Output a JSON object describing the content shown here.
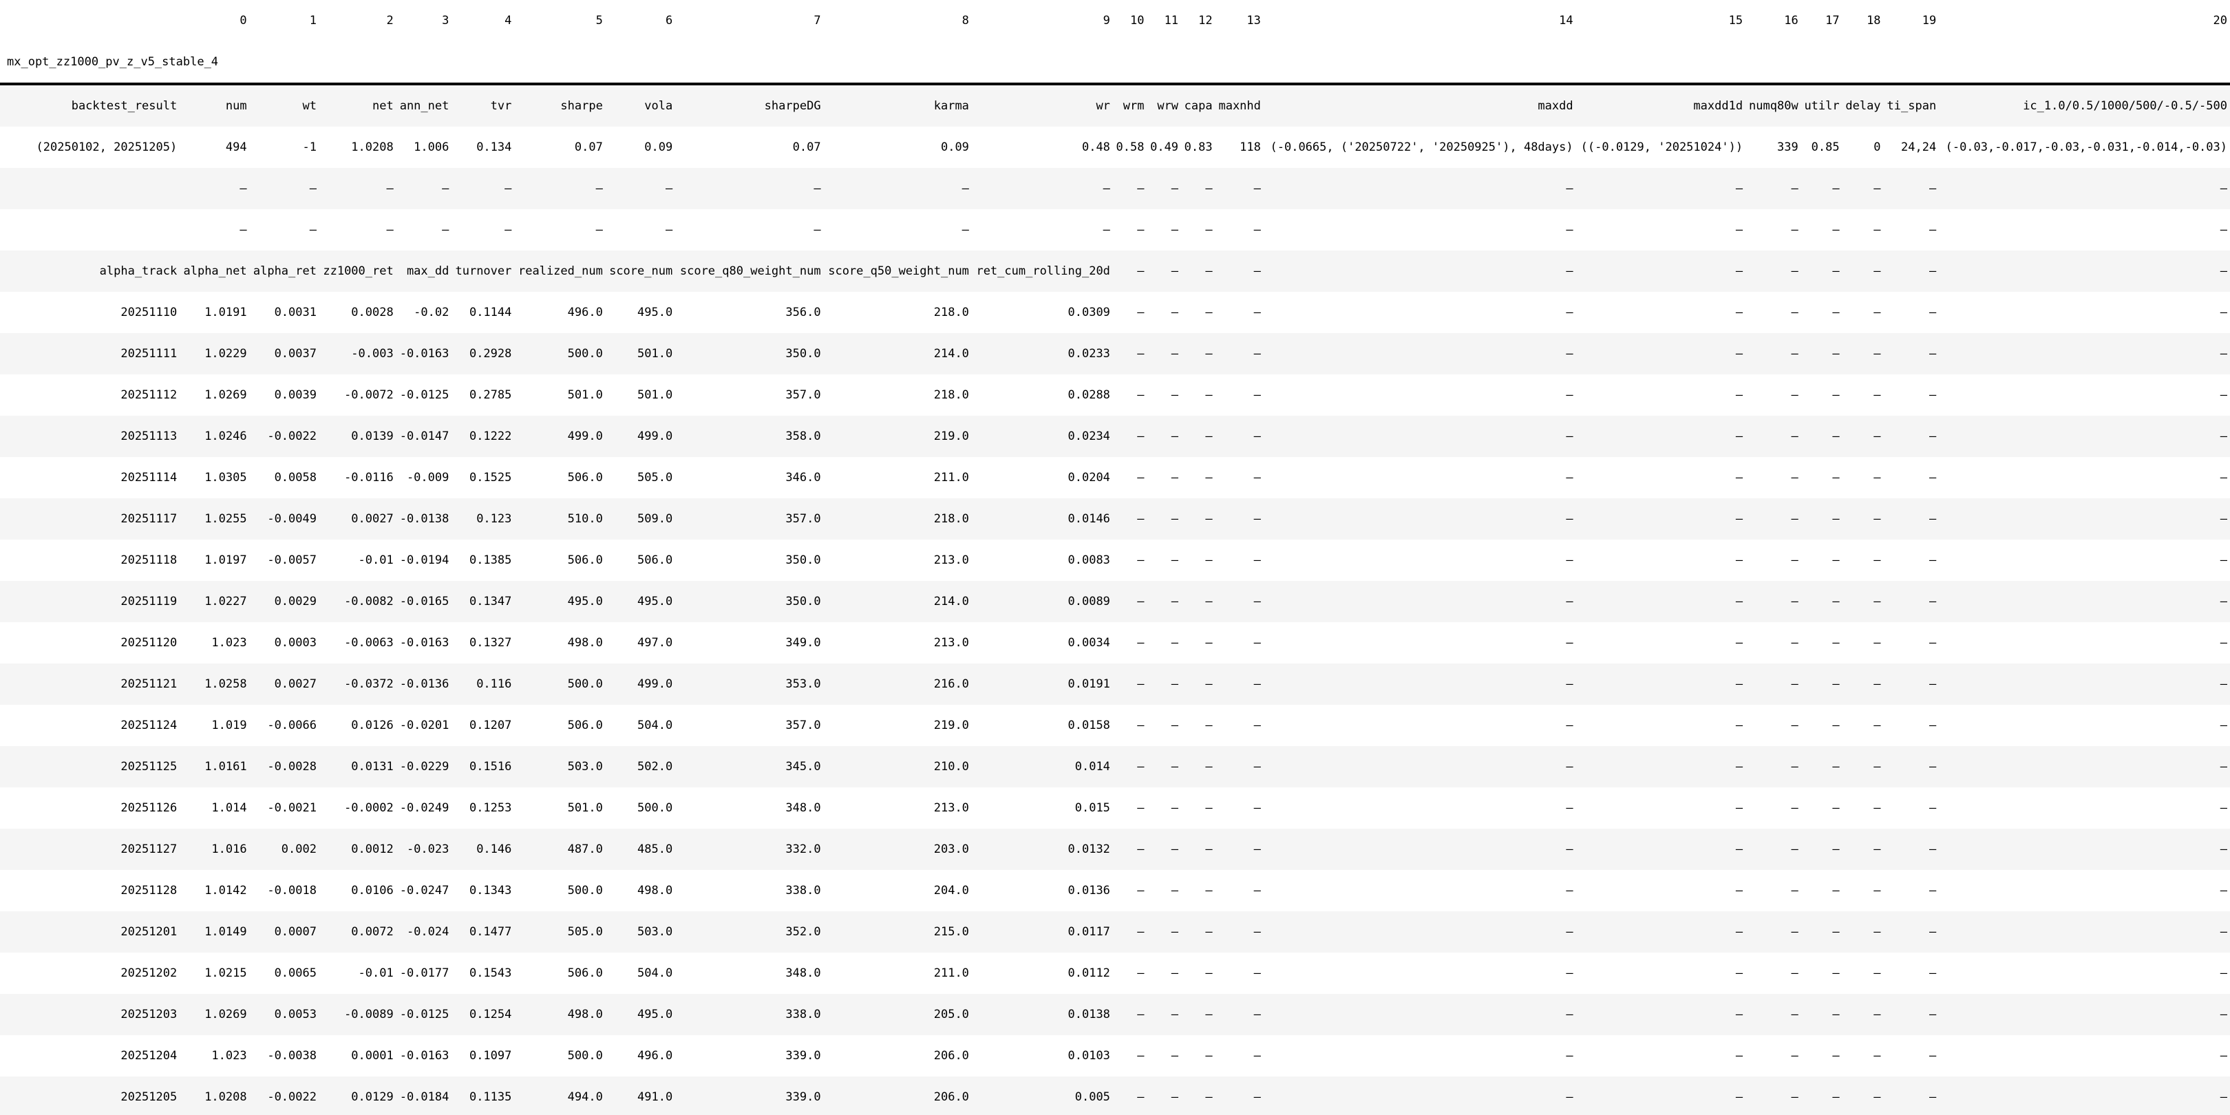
{
  "colors": {
    "background": "#ffffff",
    "stripe": "#f5f5f5",
    "rule": "#000000",
    "text": "#000000"
  },
  "table": {
    "title": "mx_opt_zz1000_pv_z_v5_stable_4",
    "column_ruler": [
      "",
      "0",
      "1",
      "2",
      "3",
      "4",
      "5",
      "6",
      "7",
      "8",
      "9",
      "10",
      "11",
      "12",
      "13",
      "14",
      "15",
      "16",
      "17",
      "18",
      "19",
      "20"
    ],
    "header": [
      "backtest_result",
      "num",
      "wt",
      "net",
      "ann_net",
      "tvr",
      "sharpe",
      "vola",
      "sharpeDG",
      "karma",
      "wr",
      "wrm",
      "wrw",
      "capa",
      "maxnhd",
      "maxdd",
      "maxdd1d",
      "numq80w",
      "utilr",
      "delay",
      "ti_span",
      "ic_1.0/0.5/1000/500/-0.5/-500"
    ],
    "rows": [
      [
        "(20250102, 20251205)",
        "494",
        "-1",
        "1.0208",
        "1.006",
        "0.134",
        "0.07",
        "0.09",
        "0.07",
        "0.09",
        "0.48",
        "0.58",
        "0.49",
        "0.83",
        "118",
        "(-0.0665, ('20250722', '20250925'), 48days)",
        "((-0.0129, '20251024'))",
        "339",
        "0.85",
        "0",
        "24,24",
        "(-0.03,-0.017,-0.03,-0.031,-0.014,-0.03)"
      ],
      [
        "",
        "—",
        "—",
        "—",
        "—",
        "—",
        "—",
        "—",
        "—",
        "—",
        "—",
        "—",
        "—",
        "—",
        "—",
        "—",
        "—",
        "—",
        "—",
        "—",
        "—",
        "—"
      ],
      [
        "",
        "—",
        "—",
        "—",
        "—",
        "—",
        "—",
        "—",
        "—",
        "—",
        "—",
        "—",
        "—",
        "—",
        "—",
        "—",
        "—",
        "—",
        "—",
        "—",
        "—",
        "—"
      ],
      [
        "alpha_track",
        "alpha_net",
        "alpha_ret",
        "zz1000_ret",
        "max_dd",
        "turnover",
        "realized_num",
        "score_num",
        "score_q80_weight_num",
        "score_q50_weight_num",
        "ret_cum_rolling_20d",
        "—",
        "—",
        "—",
        "—",
        "—",
        "—",
        "—",
        "—",
        "—",
        "—",
        "—"
      ],
      [
        "20251110",
        "1.0191",
        "0.0031",
        "0.0028",
        "-0.02",
        "0.1144",
        "496.0",
        "495.0",
        "356.0",
        "218.0",
        "0.0309",
        "—",
        "—",
        "—",
        "—",
        "—",
        "—",
        "—",
        "—",
        "—",
        "—",
        "—"
      ],
      [
        "20251111",
        "1.0229",
        "0.0037",
        "-0.003",
        "-0.0163",
        "0.2928",
        "500.0",
        "501.0",
        "350.0",
        "214.0",
        "0.0233",
        "—",
        "—",
        "—",
        "—",
        "—",
        "—",
        "—",
        "—",
        "—",
        "—",
        "—"
      ],
      [
        "20251112",
        "1.0269",
        "0.0039",
        "-0.0072",
        "-0.0125",
        "0.2785",
        "501.0",
        "501.0",
        "357.0",
        "218.0",
        "0.0288",
        "—",
        "—",
        "—",
        "—",
        "—",
        "—",
        "—",
        "—",
        "—",
        "—",
        "—"
      ],
      [
        "20251113",
        "1.0246",
        "-0.0022",
        "0.0139",
        "-0.0147",
        "0.1222",
        "499.0",
        "499.0",
        "358.0",
        "219.0",
        "0.0234",
        "—",
        "—",
        "—",
        "—",
        "—",
        "—",
        "—",
        "—",
        "—",
        "—",
        "—"
      ],
      [
        "20251114",
        "1.0305",
        "0.0058",
        "-0.0116",
        "-0.009",
        "0.1525",
        "506.0",
        "505.0",
        "346.0",
        "211.0",
        "0.0204",
        "—",
        "—",
        "—",
        "—",
        "—",
        "—",
        "—",
        "—",
        "—",
        "—",
        "—"
      ],
      [
        "20251117",
        "1.0255",
        "-0.0049",
        "0.0027",
        "-0.0138",
        "0.123",
        "510.0",
        "509.0",
        "357.0",
        "218.0",
        "0.0146",
        "—",
        "—",
        "—",
        "—",
        "—",
        "—",
        "—",
        "—",
        "—",
        "—",
        "—"
      ],
      [
        "20251118",
        "1.0197",
        "-0.0057",
        "-0.01",
        "-0.0194",
        "0.1385",
        "506.0",
        "506.0",
        "350.0",
        "213.0",
        "0.0083",
        "—",
        "—",
        "—",
        "—",
        "—",
        "—",
        "—",
        "—",
        "—",
        "—",
        "—"
      ],
      [
        "20251119",
        "1.0227",
        "0.0029",
        "-0.0082",
        "-0.0165",
        "0.1347",
        "495.0",
        "495.0",
        "350.0",
        "214.0",
        "0.0089",
        "—",
        "—",
        "—",
        "—",
        "—",
        "—",
        "—",
        "—",
        "—",
        "—",
        "—"
      ],
      [
        "20251120",
        "1.023",
        "0.0003",
        "-0.0063",
        "-0.0163",
        "0.1327",
        "498.0",
        "497.0",
        "349.0",
        "213.0",
        "0.0034",
        "—",
        "—",
        "—",
        "—",
        "—",
        "—",
        "—",
        "—",
        "—",
        "—",
        "—"
      ],
      [
        "20251121",
        "1.0258",
        "0.0027",
        "-0.0372",
        "-0.0136",
        "0.116",
        "500.0",
        "499.0",
        "353.0",
        "216.0",
        "0.0191",
        "—",
        "—",
        "—",
        "—",
        "—",
        "—",
        "—",
        "—",
        "—",
        "—",
        "—"
      ],
      [
        "20251124",
        "1.019",
        "-0.0066",
        "0.0126",
        "-0.0201",
        "0.1207",
        "506.0",
        "504.0",
        "357.0",
        "219.0",
        "0.0158",
        "—",
        "—",
        "—",
        "—",
        "—",
        "—",
        "—",
        "—",
        "—",
        "—",
        "—"
      ],
      [
        "20251125",
        "1.0161",
        "-0.0028",
        "0.0131",
        "-0.0229",
        "0.1516",
        "503.0",
        "502.0",
        "345.0",
        "210.0",
        "0.014",
        "—",
        "—",
        "—",
        "—",
        "—",
        "—",
        "—",
        "—",
        "—",
        "—",
        "—"
      ],
      [
        "20251126",
        "1.014",
        "-0.0021",
        "-0.0002",
        "-0.0249",
        "0.1253",
        "501.0",
        "500.0",
        "348.0",
        "213.0",
        "0.015",
        "—",
        "—",
        "—",
        "—",
        "—",
        "—",
        "—",
        "—",
        "—",
        "—",
        "—"
      ],
      [
        "20251127",
        "1.016",
        "0.002",
        "0.0012",
        "-0.023",
        "0.146",
        "487.0",
        "485.0",
        "332.0",
        "203.0",
        "0.0132",
        "—",
        "—",
        "—",
        "—",
        "—",
        "—",
        "—",
        "—",
        "—",
        "—",
        "—"
      ],
      [
        "20251128",
        "1.0142",
        "-0.0018",
        "0.0106",
        "-0.0247",
        "0.1343",
        "500.0",
        "498.0",
        "338.0",
        "204.0",
        "0.0136",
        "—",
        "—",
        "—",
        "—",
        "—",
        "—",
        "—",
        "—",
        "—",
        "—",
        "—"
      ],
      [
        "20251201",
        "1.0149",
        "0.0007",
        "0.0072",
        "-0.024",
        "0.1477",
        "505.0",
        "503.0",
        "352.0",
        "215.0",
        "0.0117",
        "—",
        "—",
        "—",
        "—",
        "—",
        "—",
        "—",
        "—",
        "—",
        "—",
        "—"
      ],
      [
        "20251202",
        "1.0215",
        "0.0065",
        "-0.01",
        "-0.0177",
        "0.1543",
        "506.0",
        "504.0",
        "348.0",
        "211.0",
        "0.0112",
        "—",
        "—",
        "—",
        "—",
        "—",
        "—",
        "—",
        "—",
        "—",
        "—",
        "—"
      ],
      [
        "20251203",
        "1.0269",
        "0.0053",
        "-0.0089",
        "-0.0125",
        "0.1254",
        "498.0",
        "495.0",
        "338.0",
        "205.0",
        "0.0138",
        "—",
        "—",
        "—",
        "—",
        "—",
        "—",
        "—",
        "—",
        "—",
        "—",
        "—"
      ],
      [
        "20251204",
        "1.023",
        "-0.0038",
        "0.0001",
        "-0.0163",
        "0.1097",
        "500.0",
        "496.0",
        "339.0",
        "206.0",
        "0.0103",
        "—",
        "—",
        "—",
        "—",
        "—",
        "—",
        "—",
        "—",
        "—",
        "—",
        "—"
      ],
      [
        "20251205",
        "1.0208",
        "-0.0022",
        "0.0129",
        "-0.0184",
        "0.1135",
        "494.0",
        "491.0",
        "339.0",
        "206.0",
        "0.005",
        "—",
        "—",
        "—",
        "—",
        "—",
        "—",
        "—",
        "—",
        "—",
        "—",
        "—"
      ]
    ]
  }
}
